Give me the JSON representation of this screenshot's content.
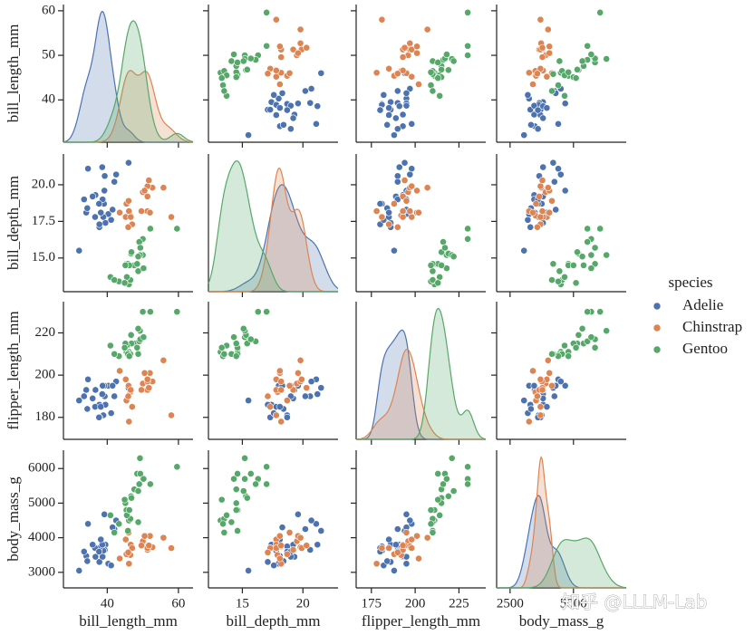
{
  "chart_data": {
    "type": "pairplot",
    "variables": [
      "bill_length_mm",
      "bill_depth_mm",
      "flipper_length_mm",
      "body_mass_g"
    ],
    "xlims": [
      [
        27.7,
        64.1
      ],
      [
        12.2,
        22.9
      ],
      [
        166.3,
        240.3
      ],
      [
        1970,
        7080
      ]
    ],
    "ylims": [
      [
        30.5,
        61.4
      ],
      [
        12.7,
        22.1
      ],
      [
        169.6,
        234.8
      ],
      [
        2550,
        6530
      ]
    ],
    "xticks": [
      [
        40,
        60
      ],
      [
        15,
        20
      ],
      [
        175,
        200,
        225
      ],
      [
        2500,
        5000
      ]
    ],
    "yticks": [
      [
        40,
        50,
        60
      ],
      [
        {
          "value": 15,
          "label": "15.0"
        },
        {
          "value": 17.5,
          "label": "17.5"
        },
        {
          "value": 20,
          "label": "20.0"
        }
      ],
      [
        180,
        200,
        220
      ],
      [
        3000,
        4000,
        5000,
        6000
      ]
    ],
    "legend_title": "species",
    "legend_position": "right",
    "watermark": "知乎 @LLLM-Lab",
    "series": [
      {
        "name": "Adelie",
        "color": "#4c72b0",
        "bill_length_mm": [
          39.1,
          39.5,
          40.3,
          36.7,
          39.3,
          38.9,
          39.2,
          34.1,
          42.0,
          37.8,
          37.8,
          41.1,
          38.6,
          34.6,
          36.6,
          38.7,
          42.5,
          34.4,
          46.0,
          37.7,
          35.9,
          38.2,
          33.5,
          41.5,
          32.1
        ],
        "bill_depth_mm": [
          18.7,
          17.4,
          18.0,
          19.3,
          20.6,
          17.8,
          19.6,
          18.1,
          20.2,
          17.1,
          17.3,
          17.6,
          21.2,
          21.1,
          17.8,
          19.0,
          20.7,
          18.4,
          21.5,
          18.7,
          19.2,
          18.1,
          19.0,
          18.3,
          15.5
        ],
        "flipper_length_mm": [
          181,
          186,
          195,
          193,
          190,
          181,
          195,
          193,
          190,
          186,
          180,
          182,
          191,
          198,
          185,
          195,
          197,
          184,
          194,
          180,
          189,
          185,
          190,
          195,
          188
        ],
        "body_mass_g": [
          3750,
          3800,
          3250,
          3450,
          3650,
          3625,
          4675,
          3475,
          4250,
          3300,
          3700,
          3200,
          3800,
          4400,
          3700,
          3450,
          4500,
          3325,
          4200,
          3600,
          3800,
          3950,
          3600,
          4300,
          3050
        ]
      },
      {
        "name": "Chinstrap",
        "color": "#dd8452",
        "bill_length_mm": [
          46.5,
          50.0,
          51.3,
          45.4,
          52.7,
          45.2,
          46.1,
          51.3,
          46.0,
          51.3,
          46.6,
          51.7,
          47.0,
          52.0,
          45.9,
          50.5,
          58.0,
          49.6,
          55.8,
          43.5
        ],
        "bill_depth_mm": [
          17.9,
          19.5,
          19.2,
          18.7,
          19.8,
          17.8,
          18.2,
          18.2,
          18.9,
          19.9,
          17.8,
          20.3,
          17.3,
          18.1,
          17.1,
          19.6,
          17.8,
          18.2,
          19.8,
          18.1
        ],
        "flipper_length_mm": [
          192,
          196,
          193,
          188,
          197,
          198,
          178,
          197,
          195,
          198,
          193,
          194,
          185,
          201,
          190,
          201,
          181,
          193,
          207,
          202
        ],
        "body_mass_g": [
          3500,
          3900,
          3650,
          3525,
          3725,
          3950,
          3250,
          3750,
          4150,
          3700,
          3800,
          3775,
          3700,
          4050,
          3575,
          4050,
          3700,
          3775,
          4000,
          3400
        ]
      },
      {
        "name": "Gentoo",
        "color": "#55a868",
        "bill_length_mm": [
          46.1,
          50.0,
          48.7,
          50.0,
          47.6,
          46.5,
          45.4,
          46.7,
          43.3,
          46.8,
          40.9,
          49.0,
          45.5,
          48.4,
          45.8,
          49.3,
          42.0,
          49.2,
          46.2,
          48.7,
          50.2,
          45.1,
          59.6,
          44.9,
          52.1
        ],
        "bill_depth_mm": [
          13.2,
          16.3,
          14.1,
          15.2,
          14.5,
          13.5,
          14.6,
          15.3,
          13.4,
          15.4,
          13.7,
          16.1,
          13.7,
          14.6,
          14.6,
          15.7,
          13.5,
          15.2,
          14.5,
          15.1,
          14.3,
          14.5,
          17.0,
          13.3,
          17.0
        ],
        "flipper_length_mm": [
          211,
          230,
          210,
          218,
          215,
          210,
          211,
          219,
          209,
          215,
          214,
          216,
          214,
          213,
          210,
          217,
          210,
          221,
          209,
          222,
          218,
          215,
          230,
          213,
          230
        ],
        "body_mass_g": [
          4500,
          5700,
          4450,
          5700,
          5400,
          4550,
          4800,
          5200,
          4400,
          5150,
          4650,
          5550,
          4650,
          5850,
          4200,
          5850,
          4150,
          6300,
          4800,
          5350,
          5700,
          5000,
          6050,
          5100,
          5550
        ]
      }
    ]
  }
}
